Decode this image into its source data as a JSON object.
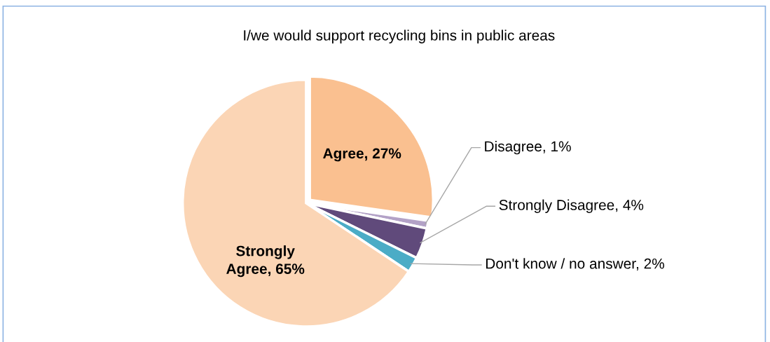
{
  "chart_data": {
    "type": "pie",
    "title": "I/we would support recycling bins in public areas",
    "categories": [
      "Agree",
      "Disagree",
      "Strongly Disagree",
      "Don't know / no answer",
      "Strongly Agree"
    ],
    "values": [
      27,
      1,
      4,
      2,
      65
    ],
    "value_labels": [
      "27%",
      "1%",
      "4%",
      "2%",
      "65%"
    ],
    "colors": [
      "#fac090",
      "#b3a2c7",
      "#604a7b",
      "#4bacc6",
      "#fbd5b5"
    ],
    "legend": false
  }
}
